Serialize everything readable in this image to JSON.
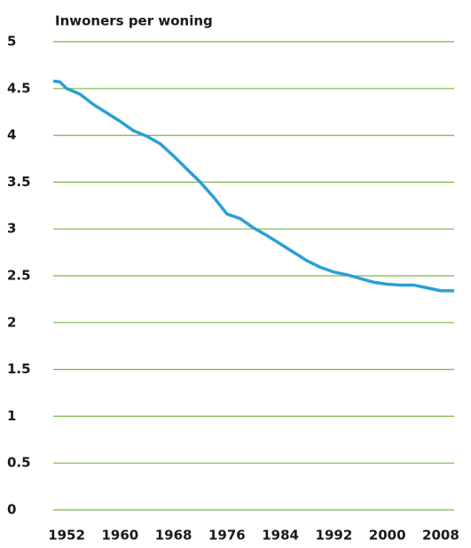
{
  "chart_data": {
    "type": "line",
    "title": "Inwoners per woning",
    "x": [
      1950,
      1951,
      1952,
      1954,
      1956,
      1958,
      1960,
      1962,
      1964,
      1966,
      1968,
      1970,
      1972,
      1974,
      1976,
      1978,
      1980,
      1982,
      1984,
      1986,
      1988,
      1990,
      1992,
      1994,
      1996,
      1998,
      2000,
      2002,
      2004,
      2006,
      2008,
      2010
    ],
    "series": [
      {
        "color": "#2a9fd6",
        "values": [
          4.58,
          4.57,
          4.5,
          4.44,
          4.33,
          4.24,
          4.15,
          4.05,
          3.99,
          3.91,
          3.78,
          3.64,
          3.5,
          3.34,
          3.16,
          3.11,
          3.01,
          2.93,
          2.84,
          2.75,
          2.66,
          2.59,
          2.54,
          2.51,
          2.47,
          2.43,
          2.41,
          2.4,
          2.4,
          2.37,
          2.34,
          2.34
        ]
      }
    ],
    "xlim": [
      1950,
      2010
    ],
    "xticks": [
      1952,
      1960,
      1968,
      1976,
      1984,
      1992,
      2000,
      2008
    ],
    "ylim": [
      0,
      5
    ],
    "yticks": [
      0,
      0.5,
      1,
      1.5,
      2,
      2.5,
      3,
      3.5,
      4,
      4.5,
      5
    ],
    "grid": true,
    "grid_color": "#7ab648"
  }
}
